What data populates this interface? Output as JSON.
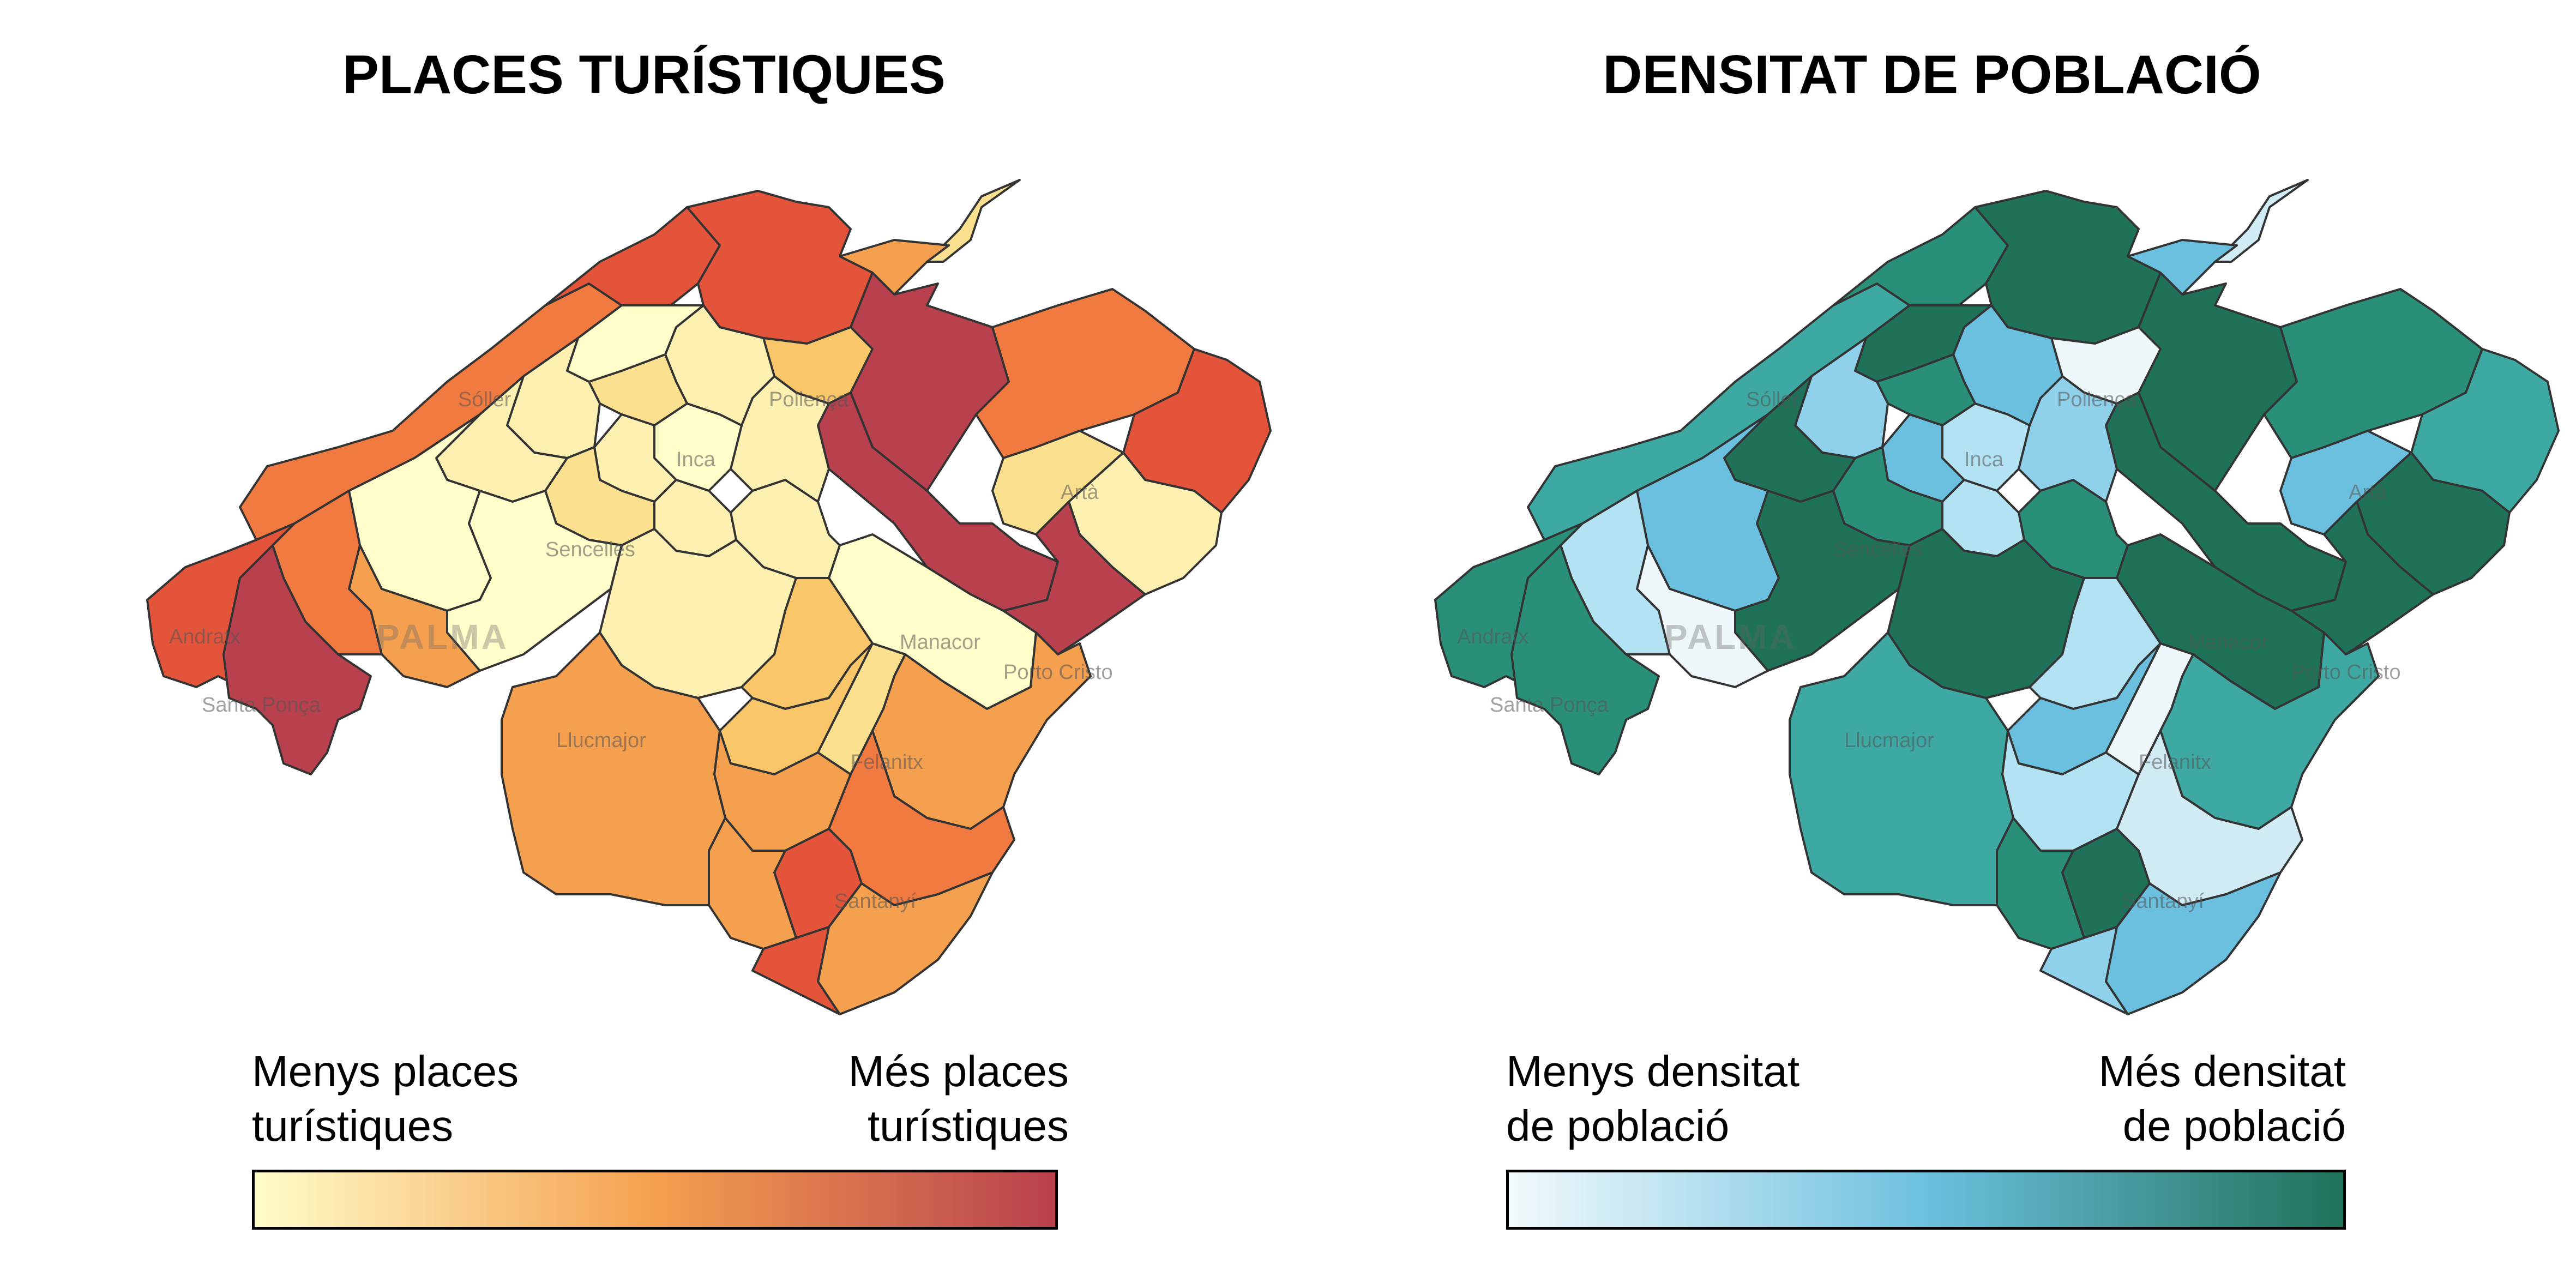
{
  "maps": [
    {
      "title": "PLACES TURÍSTIQUES",
      "legend_low": [
        "Menys places",
        "turístiques"
      ],
      "legend_high": [
        "Més places",
        "turístiques"
      ],
      "colors": [
        "#fffdc9",
        "#fdf0b0",
        "#fae08f",
        "#f9c66a",
        "#f5a04f",
        "#f07a40",
        "#e3543a",
        "#b9414d"
      ],
      "gradient": [
        "#fffdc9",
        "#f5a04f",
        "#b9414d"
      ],
      "levels": [
        5,
        6,
        6,
        7,
        2,
        4,
        3,
        7,
        5,
        6,
        1,
        2,
        0,
        1,
        1,
        0,
        1,
        2,
        1,
        0,
        1,
        1,
        2,
        1,
        0,
        0,
        1,
        3,
        3,
        4,
        2,
        4,
        5,
        6,
        4,
        6,
        7,
        4,
        4,
        4,
        5,
        6,
        7
      ]
    },
    {
      "title": "DENSITAT DE POBLACIÓ",
      "legend_low": [
        "Menys densitat",
        "de població"
      ],
      "legend_high": [
        "Més densitat",
        "de població"
      ],
      "colors": [
        "#eef7fa",
        "#d2ecf5",
        "#b3e2f2",
        "#8fd0ea",
        "#6cc0df",
        "#3ea8a3",
        "#2a8f78",
        "#1f7259"
      ],
      "gradient": [
        "#f2fafc",
        "#6cc0df",
        "#1f7259"
      ],
      "levels": [
        5,
        6,
        7,
        7,
        1,
        4,
        0,
        7,
        6,
        5,
        7,
        4,
        7,
        6,
        3,
        2,
        4,
        6,
        4,
        7,
        3,
        2,
        6,
        7,
        4,
        7,
        7,
        2,
        4,
        2,
        0,
        5,
        1,
        7,
        4,
        3,
        7,
        6,
        5,
        0,
        2,
        6,
        6
      ]
    }
  ],
  "place_labels": [
    "Sóller",
    "Pollença",
    "Inca",
    "Artà",
    "Andratx",
    "PALMA",
    "Santa Ponça",
    "Llucmajor",
    "Manacor",
    "Porto Cristo",
    "Felanitx",
    "Santanyí",
    "Sencelles"
  ]
}
